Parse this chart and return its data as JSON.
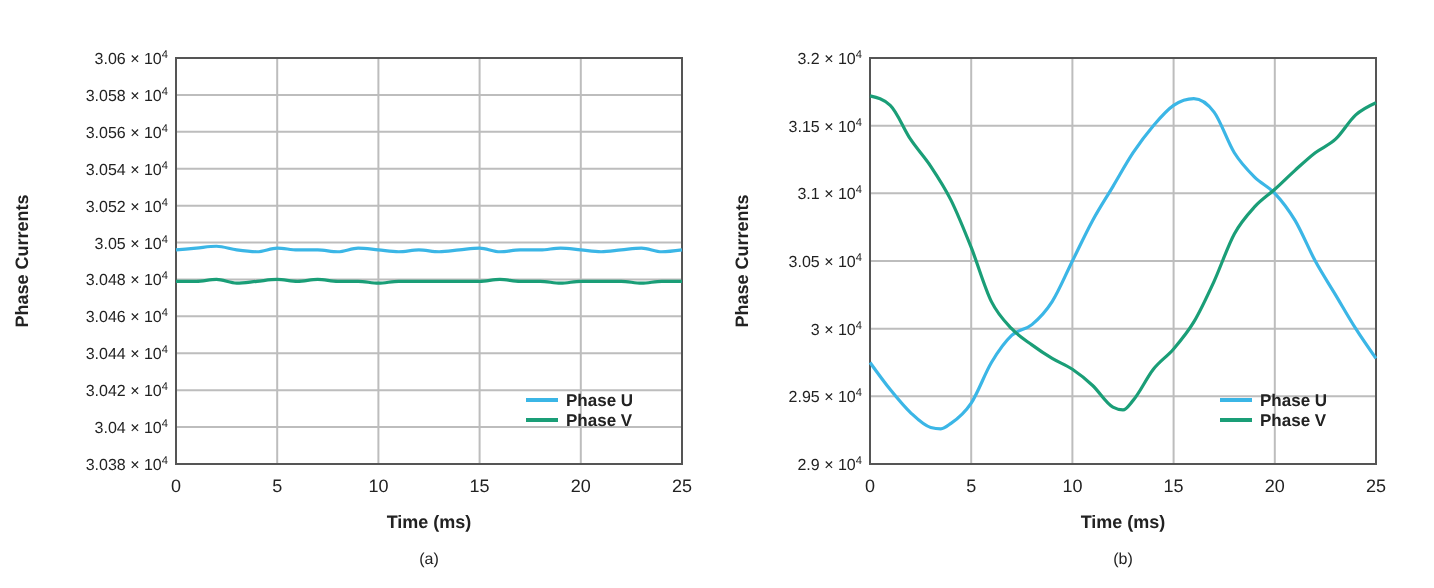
{
  "chart_data": [
    {
      "type": "line",
      "xlabel": "Time (ms)",
      "ylabel": "Phase Currents",
      "annotations": [
        "(a)"
      ],
      "grid": true,
      "legend": "bottom right",
      "line_style": "solid",
      "x": [
        0,
        1,
        2,
        3,
        4,
        5,
        6,
        7,
        8,
        9,
        10,
        11,
        12,
        13,
        14,
        15,
        16,
        17,
        18,
        19,
        20,
        21,
        22,
        23,
        24,
        25
      ],
      "series": [
        {
          "name": "Phase U",
          "color": "#3bb6e6",
          "values": [
            30496,
            30497,
            30498,
            30496,
            30495,
            30497,
            30496,
            30496,
            30495,
            30497,
            30496,
            30495,
            30496,
            30495,
            30496,
            30497,
            30495,
            30496,
            30496,
            30497,
            30496,
            30495,
            30496,
            30497,
            30495,
            30496
          ]
        },
        {
          "name": "Phase V",
          "color": "#1a9e77",
          "values": [
            30479,
            30479,
            30480,
            30478,
            30479,
            30480,
            30479,
            30480,
            30479,
            30479,
            30478,
            30479,
            30479,
            30479,
            30479,
            30479,
            30480,
            30479,
            30479,
            30478,
            30479,
            30479,
            30479,
            30478,
            30479,
            30479
          ]
        }
      ],
      "xlim": [
        0,
        25
      ],
      "xticks": [
        0,
        5,
        10,
        15,
        20,
        25
      ],
      "ylim": [
        30380,
        30600
      ],
      "yticks": [
        {
          "value": 30380,
          "label": "3.038 × 10$^{4}$"
        },
        {
          "value": 30400,
          "label": "3.04 × 10$^{4}$"
        },
        {
          "value": 30420,
          "label": "3.042 × 10$^{4}$"
        },
        {
          "value": 30440,
          "label": "3.044 × 10$^{4}$"
        },
        {
          "value": 30460,
          "label": "3.046 × 10$^{4}$"
        },
        {
          "value": 30480,
          "label": "3.048 × 10$^{4}$"
        },
        {
          "value": 30500,
          "label": "3.05 × 10$^{4}$"
        },
        {
          "value": 30520,
          "label": "3.052 × 10$^{4}$"
        },
        {
          "value": 30540,
          "label": "3.054 × 10$^{4}$"
        },
        {
          "value": 30560,
          "label": "3.056 × 10$^{4}$"
        },
        {
          "value": 30580,
          "label": "3.058 × 10$^{4}$"
        },
        {
          "value": 30600,
          "label": "3.06 × 10$^{4}$"
        }
      ]
    },
    {
      "type": "line",
      "xlabel": "Time (ms)",
      "ylabel": "Phase Currents",
      "annotations": [
        "(b)"
      ],
      "grid": true,
      "legend": "bottom right",
      "line_style": "solid",
      "series": [
        {
          "name": "Phase U",
          "color": "#3bb6e6",
          "x": [
            0,
            1,
            2,
            3,
            3.5,
            4,
            5,
            6,
            7,
            8,
            9,
            10,
            11,
            12,
            13,
            14,
            15,
            16,
            17,
            18,
            19,
            20,
            21,
            22,
            23,
            24,
            25
          ],
          "values": [
            29750,
            29550,
            29380,
            29270,
            29260,
            29300,
            29450,
            29750,
            29950,
            30030,
            30200,
            30500,
            30800,
            31050,
            31300,
            31500,
            31650,
            31700,
            31600,
            31300,
            31120,
            31000,
            30800,
            30500,
            30250,
            30000,
            29780
          ]
        },
        {
          "name": "Phase V",
          "color": "#1a9e77",
          "x": [
            0,
            1,
            2,
            3,
            4,
            5,
            6,
            7,
            8,
            9,
            10,
            11,
            12,
            12.5,
            13,
            14,
            15,
            16,
            17,
            18,
            19,
            20,
            21,
            22,
            23,
            24,
            25
          ],
          "values": [
            31720,
            31650,
            31400,
            31200,
            30950,
            30600,
            30200,
            30000,
            29880,
            29780,
            29700,
            29580,
            29420,
            29400,
            29470,
            29700,
            29850,
            30050,
            30350,
            30700,
            30900,
            31030,
            31170,
            31300,
            31400,
            31580,
            31670
          ]
        }
      ],
      "xlim": [
        0,
        25
      ],
      "xticks": [
        0,
        5,
        10,
        15,
        20,
        25
      ],
      "ylim": [
        29000,
        32000
      ],
      "yticks": [
        {
          "value": 29000,
          "label": "2.9 × 10$^{4}$"
        },
        {
          "value": 29500,
          "label": "2.95 × 10$^{4}$"
        },
        {
          "value": 30000,
          "label": "3 × 10$^{4}$"
        },
        {
          "value": 30500,
          "label": "3.05 × 10$^{4}$"
        },
        {
          "value": 31000,
          "label": "3.1 × 10$^{4}$"
        },
        {
          "value": 31500,
          "label": "3.15 × 10$^{4}$"
        },
        {
          "value": 32000,
          "label": "3.2 × 10$^{4}$"
        }
      ]
    }
  ]
}
